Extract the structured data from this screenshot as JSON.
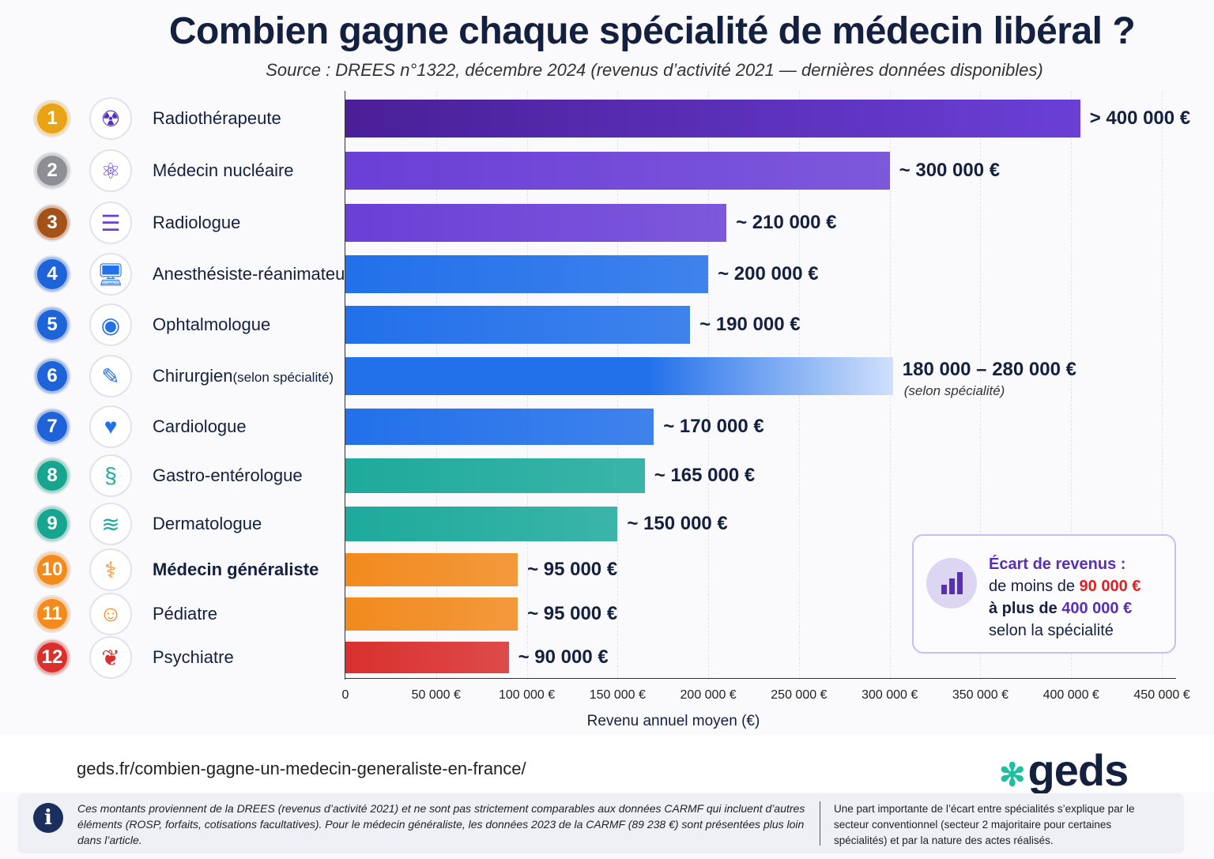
{
  "chart_data": {
    "type": "bar",
    "orientation": "horizontal",
    "title": "Combien gagne chaque spécialité de médecin libéral ?",
    "subtitle": "Source : DREES n°1322, décembre 2024 (revenus d’activité 2021 — dernières données disponibles)",
    "xlabel": "Revenu annuel moyen (€)",
    "xlim": [
      0,
      450000
    ],
    "x_ticks": [
      "0",
      "50 000 €",
      "100 000 €",
      "150 000 €",
      "200 000 €",
      "250 000 €",
      "300 000 €",
      "350 000 €",
      "400 000 €",
      "450 000 €"
    ],
    "grid": true,
    "rows": [
      {
        "rank": "1",
        "name": "Radiothérapeute",
        "name_note": "",
        "value": 405000,
        "value_label": "> 400 000 €",
        "icon": "radiation-icon",
        "color": "#5a2fc0",
        "badge": "#e8a316"
      },
      {
        "rank": "2",
        "name": "Médecin nucléaire",
        "name_note": "",
        "value": 300000,
        "value_label": "~ 300 000 €",
        "icon": "atom-icon",
        "color": "#6a3fd6",
        "badge": "#8e8e96"
      },
      {
        "rank": "3",
        "name": "Radiologue",
        "name_note": "",
        "value": 210000,
        "value_label": "~ 210 000 €",
        "icon": "xray-icon",
        "color": "#6a3fd6",
        "badge": "#a5521a"
      },
      {
        "rank": "4",
        "name": "Anesthésiste-réanimateur",
        "name_note": "",
        "value": 200000,
        "value_label": "~ 200 000 €",
        "icon": "monitor-icon",
        "color": "#2270ea",
        "badge": "#1e63d8"
      },
      {
        "rank": "5",
        "name": "Ophtalmologue",
        "name_note": "",
        "value": 190000,
        "value_label": "~ 190 000 €",
        "icon": "eye-icon",
        "color": "#2270ea",
        "badge": "#1e63d8"
      },
      {
        "rank": "6",
        "name": "Chirurgien",
        "name_note": "(selon spécialité)",
        "value": [
          180000,
          280000
        ],
        "value_label": "180 000 – 280 000 €",
        "value_sub": "(selon spécialité)",
        "icon": "scalpel-icon",
        "color": "#2270ea",
        "badge": "#1e63d8"
      },
      {
        "rank": "7",
        "name": "Cardiologue",
        "name_note": "",
        "value": 170000,
        "value_label": "~ 170 000 €",
        "icon": "heart-icon",
        "color": "#2270ea",
        "badge": "#1e63d8"
      },
      {
        "rank": "8",
        "name": "Gastro-entérologue",
        "name_note": "",
        "value": 165000,
        "value_label": "~ 165 000 €",
        "icon": "intestine-icon",
        "color": "#1daa9c",
        "badge": "#18a58f"
      },
      {
        "rank": "9",
        "name": "Dermatologue",
        "name_note": "",
        "value": 150000,
        "value_label": "~ 150 000 €",
        "icon": "skin-icon",
        "color": "#1daa9c",
        "badge": "#18a58f"
      },
      {
        "rank": "10",
        "name": "Médecin généraliste",
        "name_note": "",
        "value": 95000,
        "value_label": "~ 95 000 €",
        "icon": "doctor-icon",
        "color": "#f28a1e",
        "badge": "#f28a1e",
        "bold": true
      },
      {
        "rank": "11",
        "name": "Pédiatre",
        "name_note": "",
        "value": 95000,
        "value_label": "~ 95 000 €",
        "icon": "baby-icon",
        "color": "#f28a1e",
        "badge": "#f28a1e"
      },
      {
        "rank": "12",
        "name": "Psychiatre",
        "name_note": "",
        "value": 90000,
        "value_label": "~ 90 000 €",
        "icon": "brain-icon",
        "color": "#d9302e",
        "badge": "#d9302e"
      }
    ]
  },
  "callout": {
    "title": "Écart de revenus :",
    "line1_prefix": "de moins de ",
    "line1_value": "90 000 €",
    "line2_prefix": "à plus de ",
    "line2_value": "400 000 €",
    "line3": "selon la spécialité",
    "icon": "bar-chart-icon"
  },
  "footer": {
    "url": "geds.fr/combien-gagne-un-medecin-generaliste-en-france/",
    "logo": "geds",
    "note_left": "Ces montants proviennent de la DREES (revenus d’activité 2021) et ne sont pas strictement comparables aux données CARMF qui incluent d’autres éléments (ROSP, forfaits, cotisations facultatives). Pour le médecin généraliste, les données 2023 de la CARMF (89 238 €) sont présentées plus loin dans l’article.",
    "note_right": "Une part importante de l’écart entre spécialités s’explique par le secteur conventionnel (secteur 2 majoritaire pour certaines spécialités) et par la nature des actes réalisés."
  },
  "colors": {
    "title": "#14203f",
    "purple": "#5a2fb5",
    "red": "#e02020"
  }
}
